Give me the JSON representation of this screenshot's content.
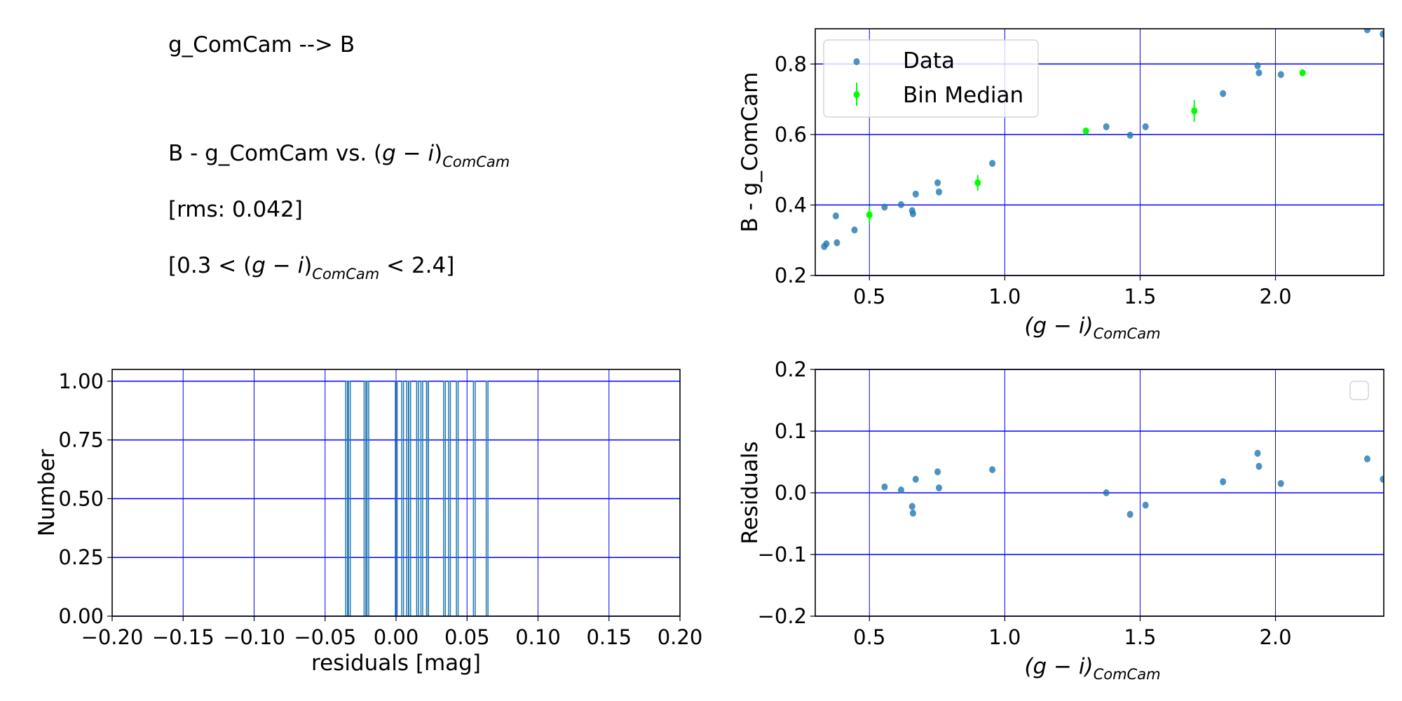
{
  "text_panel": {
    "title": "g_ComCam --> B",
    "relation_prefix": "B - g_ComCam vs. ",
    "color_open": "(",
    "color_g": "g",
    "color_minus": " − ",
    "color_i": "i",
    "color_close": ")",
    "color_sub": "ComCam",
    "rms": "[rms: 0.042]",
    "range_prefix": "[0.3 < ",
    "range_suffix": " < 2.4]"
  },
  "colors": {
    "data": "#1f77b4",
    "bin_median": "#00ff00",
    "grid": "#0000ff"
  },
  "chart_data": [
    {
      "id": "main",
      "type": "scatter",
      "xlabel_main": "(g − i)",
      "xlabel_sub": "ComCam",
      "ylabel": "B - g_ComCam",
      "xlim": [
        0.3,
        2.4
      ],
      "ylim": [
        0.2,
        0.9
      ],
      "xticks": [
        0.5,
        1.0,
        1.5,
        2.0
      ],
      "xtick_labels": [
        "0.5",
        "1.0",
        "1.5",
        "2.0"
      ],
      "yticks": [
        0.2,
        0.4,
        0.6,
        0.8
      ],
      "ytick_labels": [
        "0.2",
        "0.4",
        "0.6",
        "0.8"
      ],
      "grid": true,
      "legend": {
        "placement": "upper-left",
        "entries": [
          "Data",
          "Bin Median"
        ]
      },
      "series": [
        {
          "name": "Data",
          "kind": "points",
          "x": [
            0.333,
            0.341,
            0.376,
            0.38,
            0.445,
            0.556,
            0.617,
            0.658,
            0.661,
            0.671,
            0.752,
            0.757,
            0.954,
            1.375,
            1.463,
            1.52,
            1.806,
            1.934,
            1.939,
            2.02,
            2.339,
            2.397
          ],
          "y": [
            0.282,
            0.29,
            0.369,
            0.293,
            0.329,
            0.394,
            0.401,
            0.384,
            0.375,
            0.431,
            0.463,
            0.437,
            0.518,
            0.622,
            0.598,
            0.622,
            0.716,
            0.795,
            0.775,
            0.77,
            0.897,
            0.885
          ]
        },
        {
          "name": "Bin Median",
          "kind": "errorbar",
          "x": [
            0.5,
            0.9,
            1.3,
            1.7,
            2.1
          ],
          "y": [
            0.372,
            0.463,
            0.61,
            0.667,
            0.775
          ],
          "yerr": [
            0.025,
            0.022,
            0.005,
            0.031,
            0.005
          ]
        }
      ]
    },
    {
      "id": "hist",
      "type": "bar",
      "xlabel": "residuals [mag]",
      "ylabel": "Number",
      "xlim": [
        -0.2,
        0.2
      ],
      "ylim": [
        0,
        1.05
      ],
      "xticks": [
        -0.2,
        -0.15,
        -0.1,
        -0.05,
        0,
        0.05,
        0.1,
        0.15,
        0.2
      ],
      "xtick_labels": [
        "−0.20",
        "−0.15",
        "−0.10",
        "−0.05",
        "0.00",
        "0.05",
        "0.10",
        "0.15",
        "0.20"
      ],
      "yticks": [
        0,
        0.25,
        0.5,
        0.75,
        1.0
      ],
      "ytick_labels": [
        "0.00",
        "0.25",
        "0.50",
        "0.75",
        "1.00"
      ],
      "grid": true,
      "bin_centers": [
        -0.035,
        -0.033,
        -0.022,
        -0.02,
        0.0,
        0.0045,
        0.008,
        0.0095,
        0.015,
        0.018,
        0.022,
        0.022,
        0.034,
        0.0375,
        0.043,
        0.055,
        0.064
      ],
      "counts": [
        1,
        1,
        1,
        1,
        1,
        1,
        1,
        1,
        1,
        1,
        1,
        1,
        1,
        1,
        1,
        1,
        1
      ]
    },
    {
      "id": "resid",
      "type": "scatter",
      "xlabel_main": "(g − i)",
      "xlabel_sub": "ComCam",
      "ylabel": "Residuals",
      "xlim": [
        0.3,
        2.4
      ],
      "ylim": [
        -0.2,
        0.2
      ],
      "xticks": [
        0.5,
        1.0,
        1.5,
        2.0
      ],
      "xtick_labels": [
        "0.5",
        "1.0",
        "1.5",
        "2.0"
      ],
      "yticks": [
        -0.2,
        -0.1,
        0,
        0.1,
        0.2
      ],
      "ytick_labels": [
        "−0.2",
        "−0.1",
        "0.0",
        "0.1",
        "0.2"
      ],
      "grid": true,
      "legend": {
        "placement": "upper-right",
        "entries": []
      },
      "series": [
        {
          "name": "Residuals",
          "kind": "points",
          "x": [
            0.556,
            0.617,
            0.658,
            0.661,
            0.671,
            0.752,
            0.757,
            0.954,
            1.375,
            1.463,
            1.52,
            1.806,
            1.934,
            1.939,
            2.02,
            2.339,
            2.397
          ],
          "y": [
            0.0095,
            0.0045,
            -0.022,
            -0.033,
            0.022,
            0.034,
            0.008,
            0.0375,
            0.0,
            -0.035,
            -0.02,
            0.018,
            0.064,
            0.043,
            0.015,
            0.055,
            0.022
          ]
        }
      ]
    }
  ]
}
